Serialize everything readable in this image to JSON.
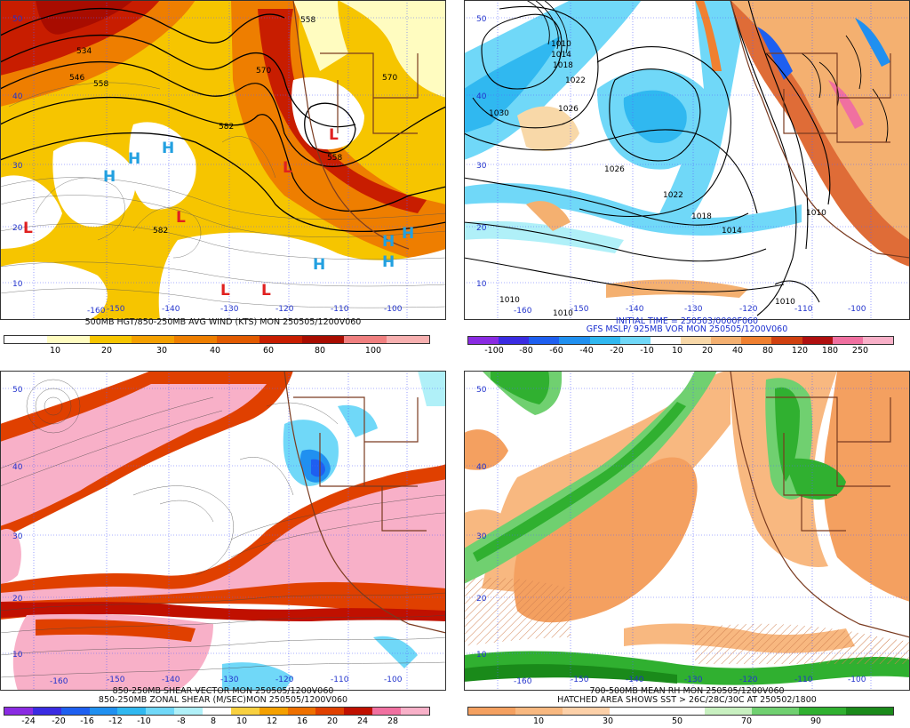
{
  "panels": [
    {
      "caption": [
        "500MB HGT/850-250MB AVG WIND (KTS) MON 250505/1200V060"
      ],
      "colorbar": {
        "colors": [
          "#ffffff",
          "#fffcc0",
          "#f6c500",
          "#f4a000",
          "#ee7e00",
          "#e25a00",
          "#c81d00",
          "#a80c00",
          "#f08080",
          "#f7b0b0"
        ],
        "labels": [
          "10",
          "20",
          "30",
          "40",
          "60",
          "80",
          "100"
        ]
      },
      "lat_labels": [
        "50",
        "40",
        "30",
        "20",
        "10"
      ],
      "lon_labels": [
        "-160",
        "-150",
        "-140",
        "-130",
        "-120",
        "-110",
        "-100"
      ],
      "contour_labels": [
        "534",
        "546",
        "558",
        "570",
        "582",
        "558",
        "570",
        "558",
        "582"
      ],
      "centers": [
        {
          "t": "H",
          "c": "#22a0e0"
        },
        {
          "t": "H",
          "c": "#22a0e0"
        },
        {
          "t": "H",
          "c": "#22a0e0"
        },
        {
          "t": "L",
          "c": "#e02020"
        },
        {
          "t": "L",
          "c": "#e02020"
        },
        {
          "t": "L",
          "c": "#e02020"
        },
        {
          "t": "L",
          "c": "#e02020"
        },
        {
          "t": "L",
          "c": "#e02020"
        },
        {
          "t": "L",
          "c": "#e02020"
        },
        {
          "t": "H",
          "c": "#22a0e0"
        },
        {
          "t": "H",
          "c": "#22a0e0"
        },
        {
          "t": "H",
          "c": "#22a0e0"
        },
        {
          "t": "H",
          "c": "#22a0e0"
        }
      ]
    },
    {
      "caption": [
        "INITIAL TIME = 250503/0000F060",
        "GFS MSLP/ 925MB VOR MON 250505/1200V060"
      ],
      "colorbar": {
        "colors": [
          "#8a2be2",
          "#3a2be2",
          "#1e5ff0",
          "#2090f0",
          "#30b8f0",
          "#70d8f8",
          "#ffffff",
          "#f8d8a8",
          "#f4b070",
          "#f08030",
          "#d04010",
          "#b01010",
          "#f070a0",
          "#f8b0c8"
        ],
        "labels": [
          "-100",
          "-80",
          "-60",
          "-40",
          "-20",
          "-10",
          "10",
          "20",
          "40",
          "80",
          "120",
          "180",
          "250"
        ]
      },
      "lat_labels": [
        "50",
        "40",
        "30",
        "20",
        "10"
      ],
      "lon_labels": [
        "-160",
        "-150",
        "-140",
        "-130",
        "-120",
        "-110",
        "-100"
      ],
      "contour_labels": [
        "1030",
        "1026",
        "1022",
        "1018",
        "1014",
        "1010",
        "1026",
        "1022",
        "1018",
        "1014",
        "1010",
        "1010",
        "1010",
        "1010"
      ]
    },
    {
      "caption": [
        "850-250MB SHEAR VECTOR MON 250505/1200V060",
        "850-250MB ZONAL SHEAR (M/SEC)MON 250505/1200V060"
      ],
      "colorbar": {
        "colors": [
          "#8a2be2",
          "#3a2be2",
          "#1e5ff0",
          "#2090f0",
          "#30b8f0",
          "#70d8f8",
          "#b0f0f8",
          "#ffffff",
          "#f8d040",
          "#f4a000",
          "#ee7000",
          "#e04000",
          "#c01000",
          "#f070a0",
          "#f8b0c8"
        ],
        "labels": [
          "-24",
          "-20",
          "-16",
          "-12",
          "-10",
          "-8",
          "8",
          "10",
          "12",
          "16",
          "20",
          "24",
          "28"
        ]
      },
      "lat_labels": [
        "50",
        "40",
        "30",
        "20",
        "10"
      ],
      "lon_labels": [
        "-160",
        "-150",
        "-140",
        "-130",
        "-120",
        "-110",
        "-100"
      ]
    },
    {
      "caption": [
        "700-500MB MEAN RH MON 250505/1200V060",
        "HATCHED AREA SHOWS SST > 26C/28C/30C AT 250502/1800"
      ],
      "colorbar": {
        "colors": [
          "#f4a060",
          "#f8b880",
          "#fcd0a8",
          "#ffffff",
          "#ffffff",
          "#c8f0c0",
          "#70d070",
          "#30b030",
          "#1a8a1a"
        ],
        "labels": [
          "10",
          "30",
          "50",
          "70",
          "90"
        ]
      },
      "lat_labels": [
        "50",
        "40",
        "30",
        "20",
        "10"
      ],
      "lon_labels": [
        "-160",
        "-150",
        "-140",
        "-130",
        "-120",
        "-110",
        "-100"
      ]
    }
  ]
}
